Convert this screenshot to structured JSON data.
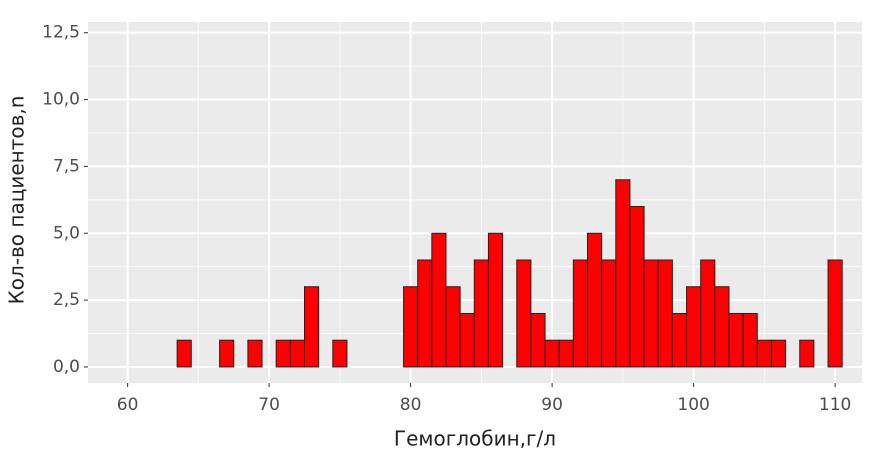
{
  "chart_data": {
    "type": "histogram",
    "x_label": "Гемоглобин,г/л",
    "y_label": "Кол-во пациентов,n",
    "bins": [
      59.5,
      60.5,
      61.5,
      62.5,
      63.5,
      64.5,
      65.5,
      66.5,
      67.5,
      68.5,
      69.5,
      70.5,
      71.5,
      72.5,
      73.5,
      74.5,
      75.5,
      76.5,
      77.5,
      78.5,
      79.5,
      80.5,
      81.5,
      82.5,
      83.5,
      84.5,
      85.5,
      86.5,
      87.5,
      88.5,
      89.5,
      90.5,
      91.5,
      92.5,
      93.5,
      94.5,
      95.5,
      96.5,
      97.5,
      98.5,
      99.5,
      100.5,
      101.5,
      102.5,
      103.5,
      104.5,
      105.5,
      106.5,
      107.5,
      108.5,
      109.5,
      110.5
    ],
    "values": [
      0,
      0,
      0,
      0,
      1,
      0,
      0,
      1,
      0,
      1,
      0,
      1,
      1,
      3,
      0,
      1,
      0,
      0,
      0,
      0,
      3,
      4,
      5,
      3,
      2,
      4,
      5,
      0,
      4,
      2,
      1,
      1,
      4,
      5,
      4,
      7,
      6,
      4,
      4,
      2,
      3,
      4,
      3,
      2,
      2,
      1,
      1,
      0,
      1,
      0,
      4
    ],
    "color": "#ff0000",
    "edge_color": "#222222",
    "xlim": [
      57.2,
      111.9
    ],
    "ylim": [
      -0.6,
      12.9
    ],
    "xticks": [
      60,
      70,
      80,
      90,
      100,
      110
    ],
    "yticks": [
      {
        "value": 0,
        "label": "0,0"
      },
      {
        "value": 2.5,
        "label": "2,5"
      },
      {
        "value": 5,
        "label": "5,0"
      },
      {
        "value": 7.5,
        "label": "7,5"
      },
      {
        "value": 10,
        "label": "10,0"
      },
      {
        "value": 12.5,
        "label": "12,5"
      }
    ],
    "grid": true
  }
}
